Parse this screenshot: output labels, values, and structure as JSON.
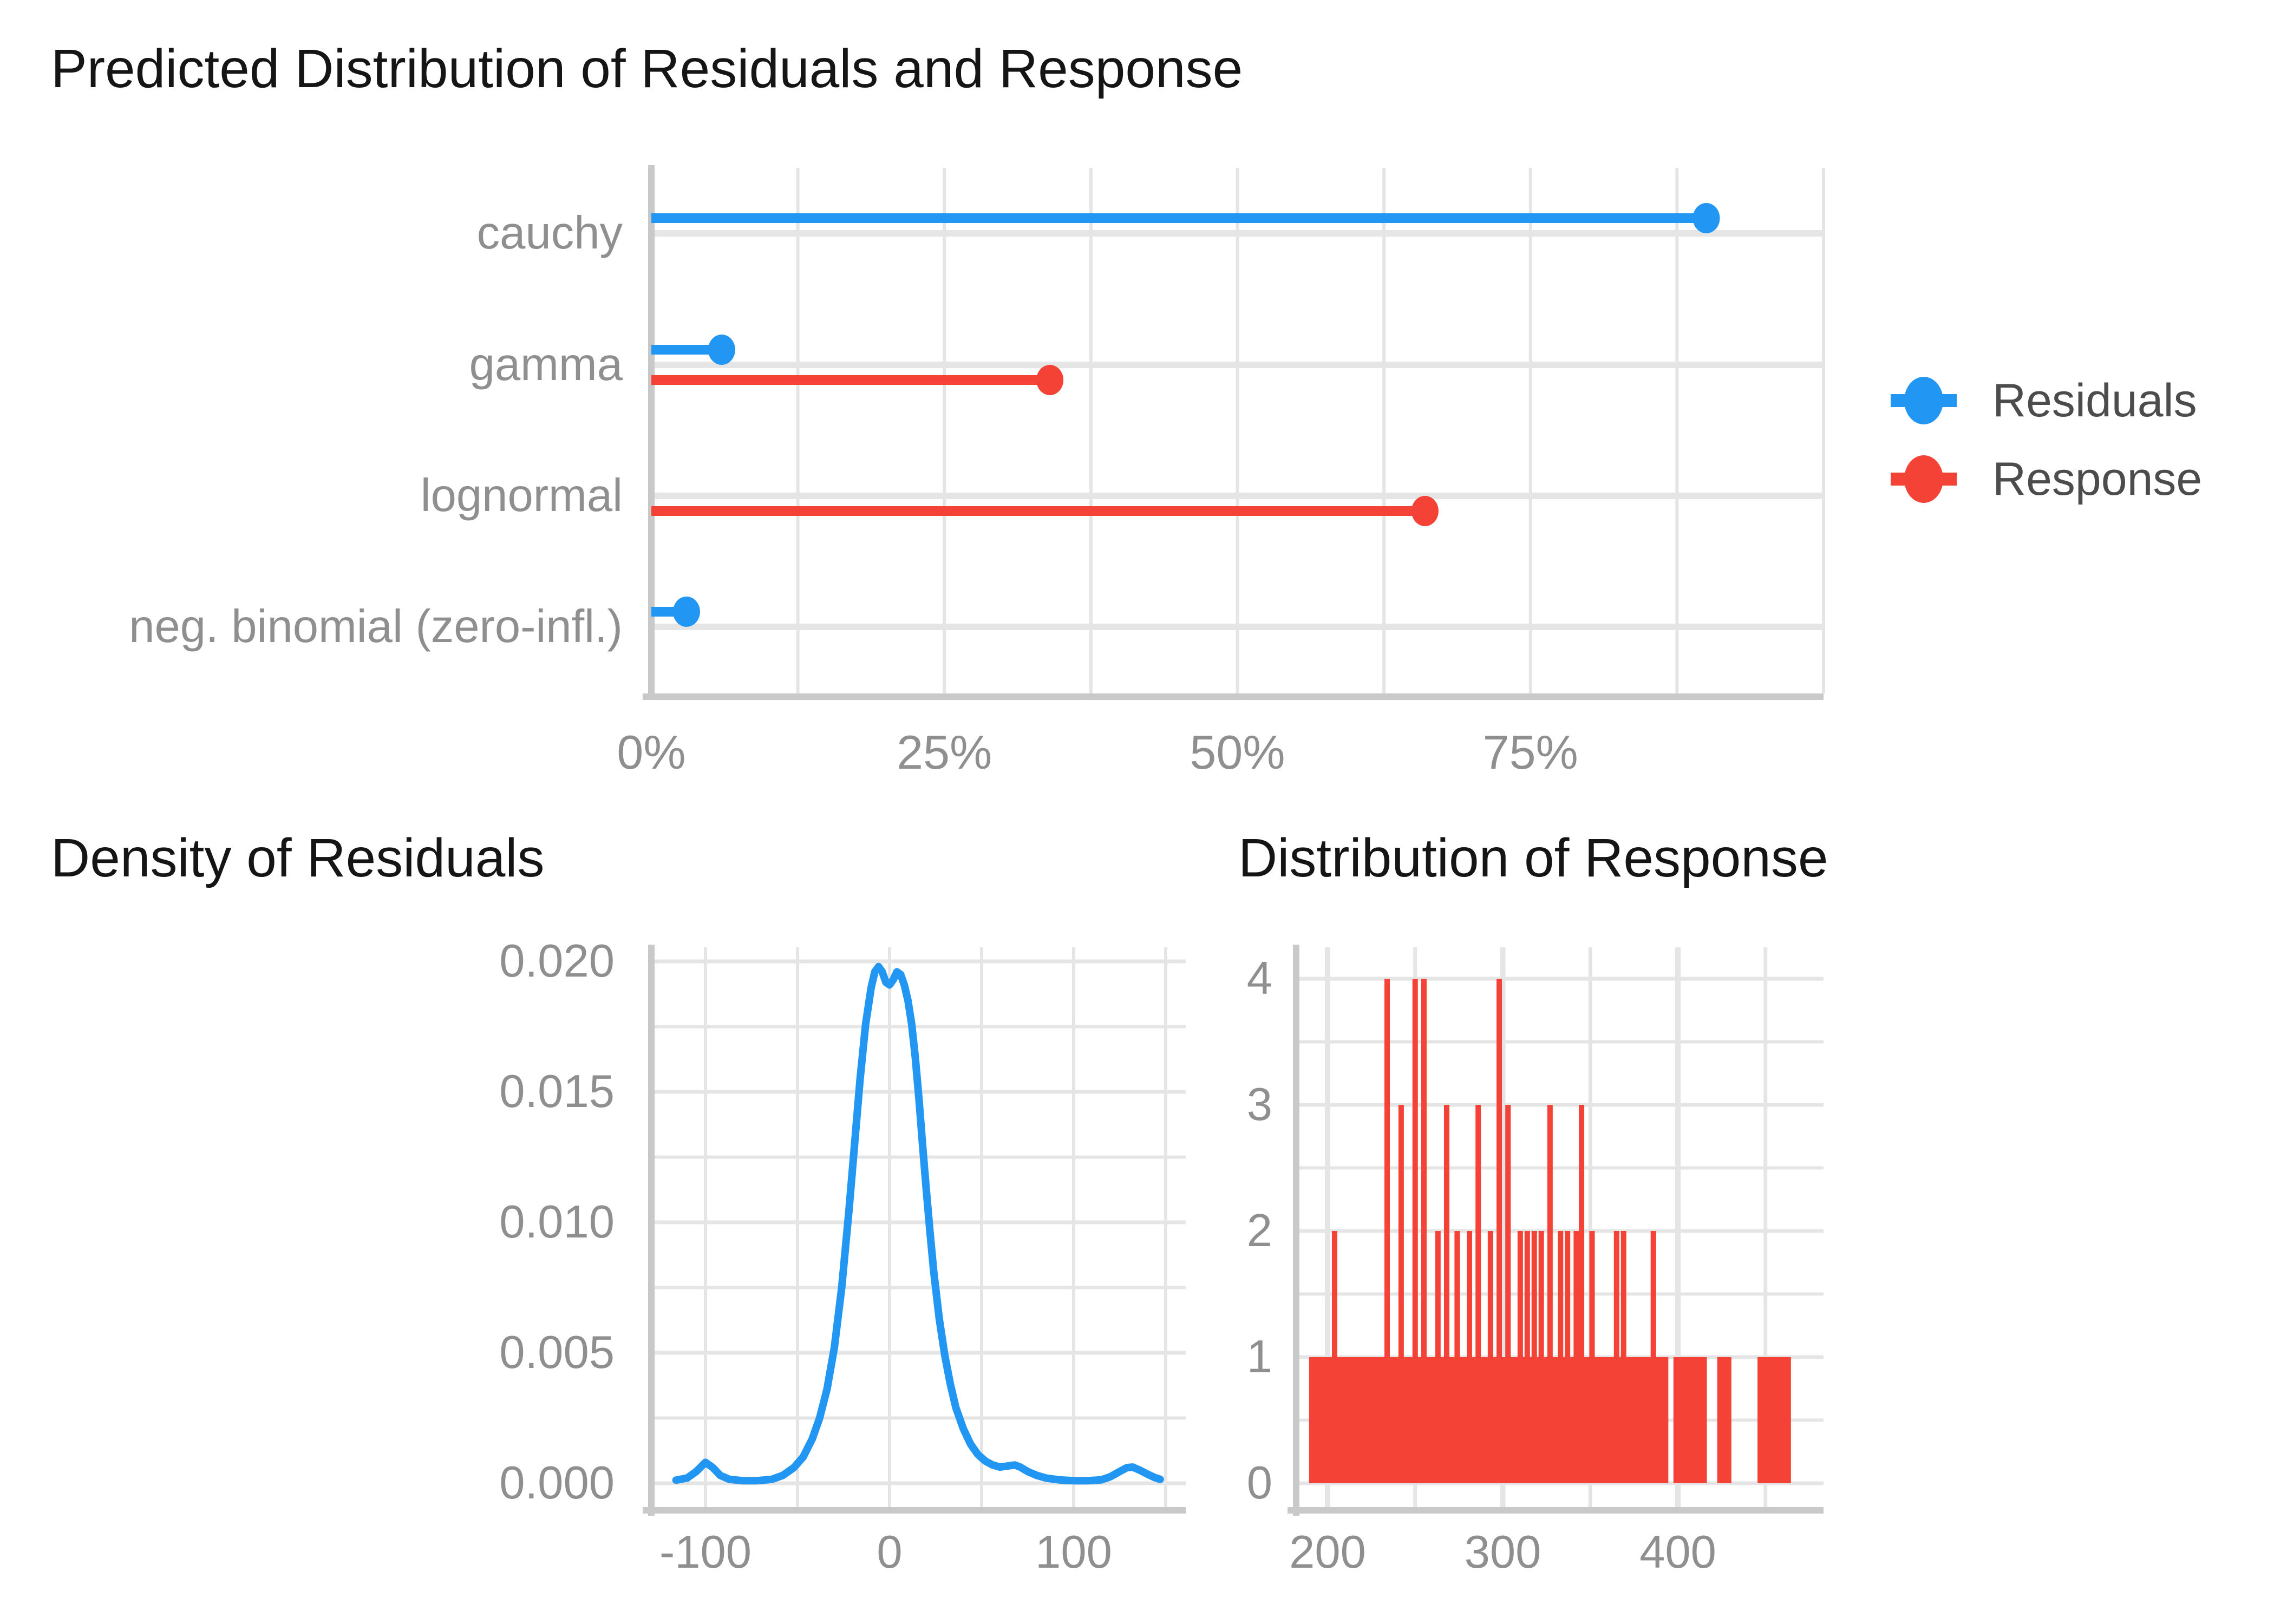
{
  "colors": {
    "residuals_blue": "#2196F3",
    "response_red": "#F44336",
    "grid": "#E5E5E5",
    "axis": "#C9C9C9",
    "tick_text": "#8F8F8F",
    "legend_text": "#4C4C4C",
    "title_text": "#151515",
    "background": "#FFFFFF"
  },
  "chart_data": [
    {
      "type": "lollipop-bar",
      "title": "Predicted Distribution of Residuals and Response",
      "categories": [
        "cauchy",
        "gamma",
        "lognormal",
        "neg. binomial (zero-infl.)"
      ],
      "series": [
        {
          "name": "Residuals",
          "color_key": "residuals_blue",
          "values": [
            90,
            6,
            null,
            3
          ]
        },
        {
          "name": "Response",
          "color_key": "response_red",
          "values": [
            null,
            34,
            66,
            null
          ]
        }
      ],
      "x_tick_labels": [
        "0%",
        "25%",
        "50%",
        "75%"
      ],
      "x_tick_values": [
        0,
        25,
        50,
        75
      ],
      "xlim": [
        0,
        100
      ],
      "x_grid_step": 12.5,
      "grid": true,
      "legend": {
        "position": "right",
        "items": [
          {
            "label": "Residuals",
            "color_key": "residuals_blue"
          },
          {
            "label": "Response",
            "color_key": "response_red"
          }
        ]
      }
    },
    {
      "type": "line",
      "title": "Density of Residuals",
      "xlabel": "",
      "ylabel": "",
      "x_tick_labels": [
        "-100",
        "0",
        "100"
      ],
      "x_tick_values": [
        -100,
        0,
        100
      ],
      "x_grid_values": [
        -100,
        -50,
        0,
        50,
        100,
        150
      ],
      "y_tick_labels": [
        "0.020",
        "0.015",
        "0.010",
        "0.005",
        "0.000"
      ],
      "y_tick_values": [
        0.02,
        0.015,
        0.01,
        0.005,
        0.0
      ],
      "y_grid_step": 0.0025,
      "xlim": [
        -129,
        161
      ],
      "ylim": [
        0,
        0.0206
      ],
      "grid": true,
      "series_color_key": "residuals_blue",
      "points": [
        [
          -116,
          0.00012
        ],
        [
          -110,
          0.0002
        ],
        [
          -105,
          0.00045
        ],
        [
          -100,
          0.0008
        ],
        [
          -96,
          0.0006
        ],
        [
          -92,
          0.0003
        ],
        [
          -87,
          0.00015
        ],
        [
          -80,
          0.0001
        ],
        [
          -72,
          0.0001
        ],
        [
          -64,
          0.00015
        ],
        [
          -58,
          0.0003
        ],
        [
          -52,
          0.0006
        ],
        [
          -47,
          0.001
        ],
        [
          -42,
          0.0017
        ],
        [
          -38,
          0.0025
        ],
        [
          -34,
          0.0036
        ],
        [
          -30,
          0.0052
        ],
        [
          -26,
          0.0075
        ],
        [
          -22,
          0.0105
        ],
        [
          -19,
          0.013
        ],
        [
          -16,
          0.0155
        ],
        [
          -13,
          0.0176
        ],
        [
          -10,
          0.019
        ],
        [
          -8,
          0.0196
        ],
        [
          -6,
          0.0198
        ],
        [
          -4,
          0.0196
        ],
        [
          -2,
          0.0192
        ],
        [
          0,
          0.0191
        ],
        [
          2,
          0.0193
        ],
        [
          4,
          0.0196
        ],
        [
          6,
          0.0195
        ],
        [
          8,
          0.0191
        ],
        [
          10,
          0.0185
        ],
        [
          12,
          0.0176
        ],
        [
          14,
          0.0163
        ],
        [
          16,
          0.0147
        ],
        [
          18,
          0.0129
        ],
        [
          20,
          0.0112
        ],
        [
          22,
          0.0096
        ],
        [
          24,
          0.0081
        ],
        [
          27,
          0.0063
        ],
        [
          30,
          0.0049
        ],
        [
          33,
          0.0038
        ],
        [
          36,
          0.0029
        ],
        [
          40,
          0.0021
        ],
        [
          44,
          0.0015
        ],
        [
          48,
          0.0011
        ],
        [
          52,
          0.00085
        ],
        [
          56,
          0.0007
        ],
        [
          60,
          0.00062
        ],
        [
          64,
          0.00066
        ],
        [
          68,
          0.0007
        ],
        [
          71,
          0.00062
        ],
        [
          75,
          0.00045
        ],
        [
          80,
          0.0003
        ],
        [
          85,
          0.0002
        ],
        [
          92,
          0.00013
        ],
        [
          100,
          0.0001
        ],
        [
          108,
          0.0001
        ],
        [
          115,
          0.00013
        ],
        [
          120,
          0.00025
        ],
        [
          125,
          0.00045
        ],
        [
          129,
          0.0006
        ],
        [
          132,
          0.00062
        ],
        [
          136,
          0.0005
        ],
        [
          140,
          0.00035
        ],
        [
          144,
          0.00022
        ],
        [
          147,
          0.00015
        ]
      ]
    },
    {
      "type": "bar",
      "title": "Distribution of Response",
      "xlabel": "",
      "ylabel": "",
      "x_tick_labels": [
        "200",
        "300",
        "400"
      ],
      "x_tick_values": [
        200,
        300,
        400
      ],
      "x_grid_values": [
        200,
        250,
        300,
        350,
        400,
        450
      ],
      "y_tick_labels": [
        "4",
        "3",
        "2",
        "1",
        "0"
      ],
      "y_tick_values": [
        4,
        3,
        2,
        1,
        0
      ],
      "y_grid_step": 0.5,
      "xlim": [
        182,
        483
      ],
      "ylim": [
        0,
        4.25
      ],
      "grid": true,
      "series_color_key": "response_red",
      "bar_runs_height1": [
        [
          191,
          193
        ],
        [
          195,
          197
        ],
        [
          198,
          200
        ],
        [
          201,
          203
        ],
        [
          205,
          208
        ],
        [
          210,
          233
        ],
        [
          236,
          249
        ],
        [
          251,
          263
        ],
        [
          264,
          283
        ],
        [
          285,
          297
        ],
        [
          299,
          305
        ],
        [
          307,
          326
        ],
        [
          328,
          344
        ],
        [
          346,
          363
        ],
        [
          364,
          372
        ],
        [
          374,
          381
        ],
        [
          383,
          393
        ],
        [
          399,
          402
        ],
        [
          404,
          407
        ],
        [
          409,
          415
        ],
        [
          424,
          429
        ],
        [
          447,
          456
        ],
        [
          459,
          463
        ]
      ],
      "bar_spikes": [
        [
          204,
          2
        ],
        [
          234,
          4
        ],
        [
          242,
          3
        ],
        [
          250,
          4
        ],
        [
          255,
          4
        ],
        [
          263,
          2
        ],
        [
          268,
          3
        ],
        [
          274,
          2
        ],
        [
          281,
          2
        ],
        [
          286,
          3
        ],
        [
          293,
          2
        ],
        [
          298,
          4
        ],
        [
          303,
          3
        ],
        [
          310,
          2
        ],
        [
          314,
          2
        ],
        [
          318,
          2
        ],
        [
          322,
          2
        ],
        [
          327,
          3
        ],
        [
          333,
          2
        ],
        [
          337,
          2
        ],
        [
          342,
          2
        ],
        [
          345,
          3
        ],
        [
          351,
          2
        ],
        [
          365,
          2
        ],
        [
          369,
          2
        ],
        [
          386,
          2
        ]
      ],
      "bar_width_units": 3.1
    }
  ]
}
